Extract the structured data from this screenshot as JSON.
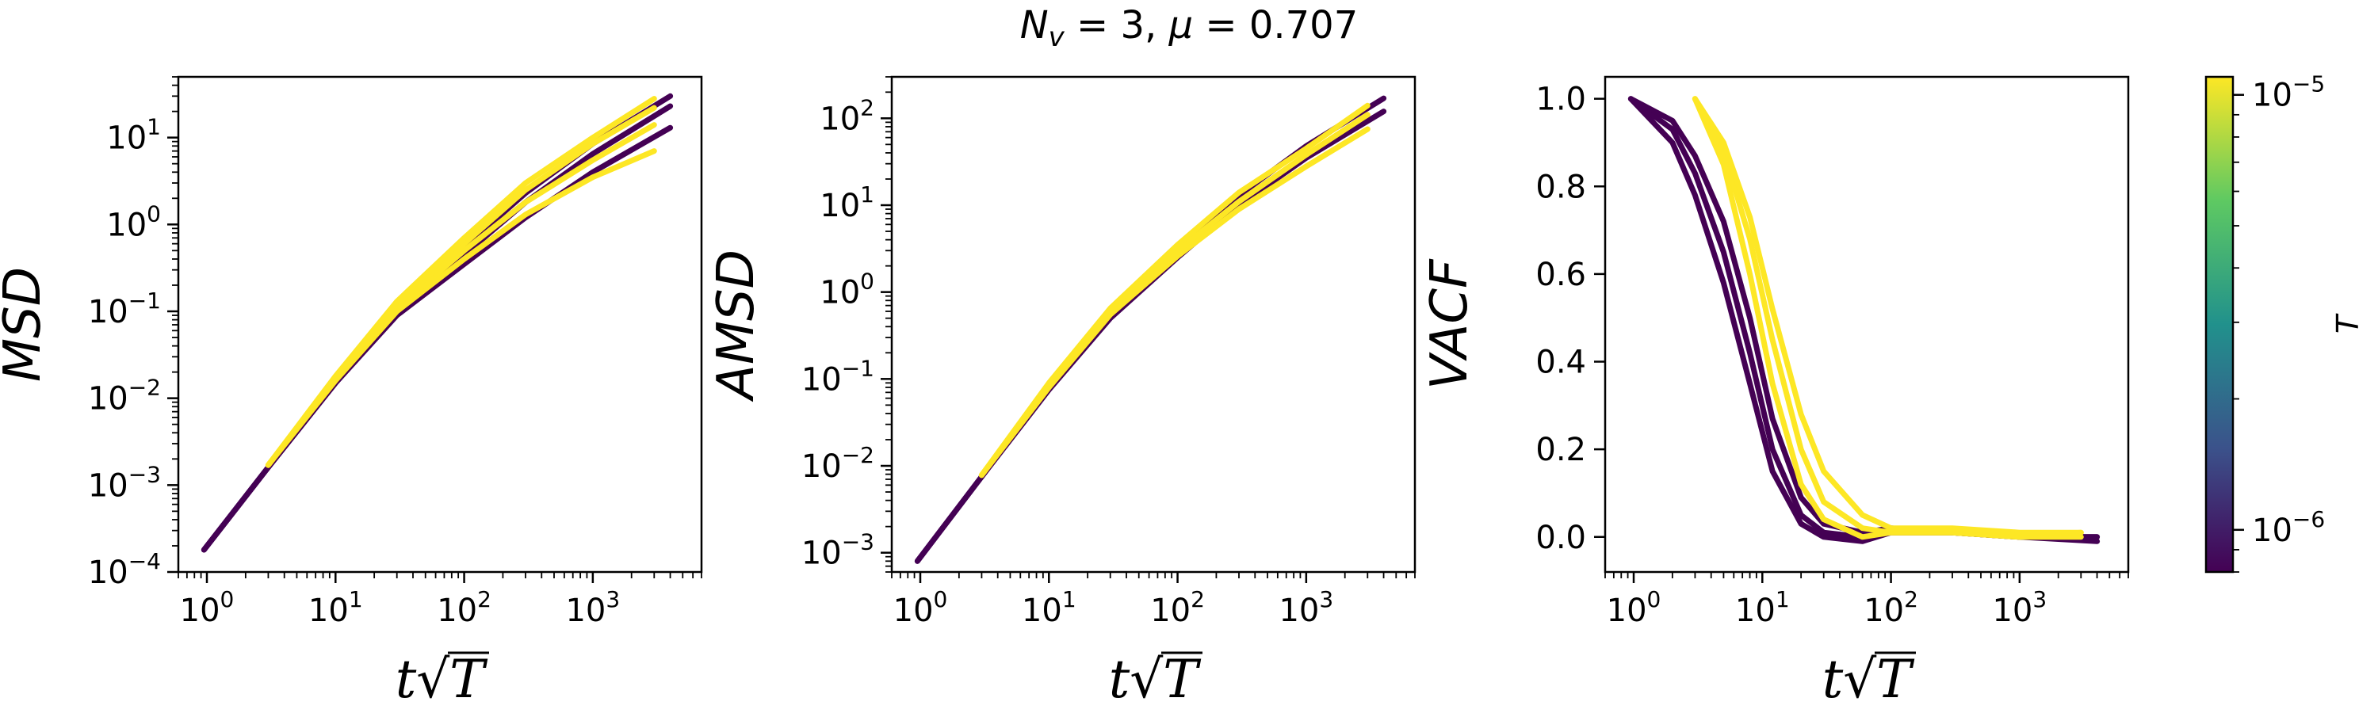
{
  "figure": {
    "suptitle": "N_v = 3, μ = 0.707",
    "colorbar": {
      "label": "T",
      "scale": "log",
      "range": [
        8e-07,
        1.1e-05
      ],
      "ticks": [
        {
          "value": 1e-05,
          "base": "10",
          "exp": "−5"
        },
        {
          "value": 1e-06,
          "base": "10",
          "exp": "−6"
        }
      ],
      "colormap": "viridis",
      "colors": [
        "#440154",
        "#3b528b",
        "#21918c",
        "#5ec962",
        "#fde725"
      ]
    }
  },
  "chart_data": [
    {
      "type": "line",
      "ylabel": "MSD",
      "xlabel": "t√T",
      "xscale": "log",
      "yscale": "log",
      "xlim": [
        0.6,
        7000
      ],
      "ylim": [
        0.0001,
        50
      ],
      "xticks": [
        {
          "value": 1,
          "base": "10",
          "exp": "0"
        },
        {
          "value": 10,
          "base": "10",
          "exp": "1"
        },
        {
          "value": 100,
          "base": "10",
          "exp": "2"
        },
        {
          "value": 1000,
          "base": "10",
          "exp": "3"
        }
      ],
      "yticks": [
        {
          "value": 0.0001,
          "base": "10",
          "exp": "−4"
        },
        {
          "value": 0.001,
          "base": "10",
          "exp": "−3"
        },
        {
          "value": 0.01,
          "base": "10",
          "exp": "−2"
        },
        {
          "value": 0.1,
          "base": "10",
          "exp": "−1"
        },
        {
          "value": 1,
          "base": "10",
          "exp": "0"
        },
        {
          "value": 10,
          "base": "10",
          "exp": "1"
        }
      ],
      "grid": false,
      "series": [
        {
          "color": "#440154",
          "x": [
            0.95,
            3,
            10,
            30,
            100,
            300,
            1000,
            4000
          ],
          "y": [
            0.00018,
            0.0016,
            0.015,
            0.09,
            0.35,
            1.2,
            4,
            13
          ]
        },
        {
          "color": "#440154",
          "x": [
            0.95,
            3,
            10,
            30,
            100,
            300,
            1000,
            4000
          ],
          "y": [
            0.00018,
            0.0016,
            0.015,
            0.1,
            0.45,
            1.8,
            6.5,
            23
          ]
        },
        {
          "color": "#440154",
          "x": [
            0.95,
            3,
            10,
            30,
            100,
            300,
            1000,
            4000
          ],
          "y": [
            0.00018,
            0.0016,
            0.016,
            0.11,
            0.55,
            2.3,
            8.5,
            30
          ]
        },
        {
          "color": "#fde725",
          "x": [
            3,
            10,
            30,
            100,
            300,
            1000,
            3000
          ],
          "y": [
            0.0017,
            0.016,
            0.1,
            0.4,
            1.3,
            3.5,
            7
          ]
        },
        {
          "color": "#fde725",
          "x": [
            3,
            10,
            30,
            100,
            300,
            1000,
            3000
          ],
          "y": [
            0.0017,
            0.017,
            0.11,
            0.5,
            1.8,
            5.5,
            14
          ]
        },
        {
          "color": "#fde725",
          "x": [
            3,
            10,
            30,
            100,
            300,
            1000,
            3000
          ],
          "y": [
            0.0017,
            0.017,
            0.12,
            0.6,
            2.5,
            8.5,
            22
          ]
        },
        {
          "color": "#fde725",
          "x": [
            3,
            10,
            30,
            100,
            300,
            1000,
            3000
          ],
          "y": [
            0.0017,
            0.018,
            0.13,
            0.7,
            3,
            10,
            28
          ]
        }
      ]
    },
    {
      "type": "line",
      "ylabel": "AMSD",
      "xlabel": "t√T",
      "xscale": "log",
      "yscale": "log",
      "xlim": [
        0.6,
        7000
      ],
      "ylim": [
        0.0006,
        300
      ],
      "xticks": [
        {
          "value": 1,
          "base": "10",
          "exp": "0"
        },
        {
          "value": 10,
          "base": "10",
          "exp": "1"
        },
        {
          "value": 100,
          "base": "10",
          "exp": "2"
        },
        {
          "value": 1000,
          "base": "10",
          "exp": "3"
        }
      ],
      "yticks": [
        {
          "value": 0.001,
          "base": "10",
          "exp": "−3"
        },
        {
          "value": 0.01,
          "base": "10",
          "exp": "−2"
        },
        {
          "value": 0.1,
          "base": "10",
          "exp": "−1"
        },
        {
          "value": 1,
          "base": "10",
          "exp": "0"
        },
        {
          "value": 10,
          "base": "10",
          "exp": "1"
        },
        {
          "value": 100,
          "base": "10",
          "exp": "2"
        }
      ],
      "grid": false,
      "series": [
        {
          "color": "#440154",
          "x": [
            0.95,
            3,
            10,
            30,
            100,
            300,
            1000,
            4000
          ],
          "y": [
            0.0008,
            0.0075,
            0.075,
            0.5,
            2.5,
            10,
            35,
            120
          ]
        },
        {
          "color": "#440154",
          "x": [
            0.95,
            3,
            10,
            30,
            100,
            300,
            1000,
            4000
          ],
          "y": [
            0.0008,
            0.0075,
            0.08,
            0.6,
            3.3,
            13,
            48,
            170
          ]
        },
        {
          "color": "#fde725",
          "x": [
            3,
            10,
            30,
            100,
            300,
            1000,
            3000
          ],
          "y": [
            0.0078,
            0.08,
            0.55,
            2.6,
            9,
            28,
            75
          ]
        },
        {
          "color": "#fde725",
          "x": [
            3,
            10,
            30,
            100,
            300,
            1000,
            3000
          ],
          "y": [
            0.0078,
            0.085,
            0.6,
            3,
            11,
            38,
            110
          ]
        },
        {
          "color": "#fde725",
          "x": [
            3,
            10,
            30,
            100,
            300,
            1000,
            3000
          ],
          "y": [
            0.0078,
            0.09,
            0.65,
            3.5,
            14,
            45,
            140
          ]
        }
      ]
    },
    {
      "type": "line",
      "ylabel": "VACF",
      "xlabel": "t√T",
      "xscale": "log",
      "yscale": "linear",
      "xlim": [
        0.6,
        7000
      ],
      "ylim": [
        -0.08,
        1.05
      ],
      "xticks": [
        {
          "value": 1,
          "base": "10",
          "exp": "0"
        },
        {
          "value": 10,
          "base": "10",
          "exp": "1"
        },
        {
          "value": 100,
          "base": "10",
          "exp": "2"
        },
        {
          "value": 1000,
          "base": "10",
          "exp": "3"
        }
      ],
      "yticks": [
        {
          "value": 0,
          "label": "0.0"
        },
        {
          "value": 0.2,
          "label": "0.2"
        },
        {
          "value": 0.4,
          "label": "0.4"
        },
        {
          "value": 0.6,
          "label": "0.6"
        },
        {
          "value": 0.8,
          "label": "0.8"
        },
        {
          "value": 1,
          "label": "1.0"
        }
      ],
      "grid": false,
      "series": [
        {
          "color": "#440154",
          "x": [
            0.95,
            2,
            3,
            5,
            8,
            12,
            20,
            30,
            60,
            100,
            300,
            1000,
            4000
          ],
          "y": [
            1,
            0.9,
            0.78,
            0.58,
            0.35,
            0.15,
            0.03,
            0,
            -0.01,
            0.01,
            0.01,
            0,
            0
          ]
        },
        {
          "color": "#440154",
          "x": [
            0.95,
            2,
            3,
            5,
            8,
            12,
            20,
            30,
            60,
            100,
            300,
            1000,
            4000
          ],
          "y": [
            1,
            0.93,
            0.83,
            0.65,
            0.42,
            0.2,
            0.05,
            0.01,
            0,
            0.01,
            0.01,
            0,
            -0.01
          ]
        },
        {
          "color": "#440154",
          "x": [
            0.95,
            2,
            3,
            5,
            8,
            12,
            20,
            30,
            60,
            100,
            300,
            1000,
            4000
          ],
          "y": [
            1,
            0.95,
            0.87,
            0.72,
            0.5,
            0.27,
            0.09,
            0.03,
            0.01,
            0.02,
            0.01,
            0,
            0
          ]
        },
        {
          "color": "#fde725",
          "x": [
            3,
            5,
            8,
            12,
            20,
            30,
            60,
            100,
            300,
            1000,
            3000
          ],
          "y": [
            1,
            0.85,
            0.6,
            0.35,
            0.12,
            0.04,
            0,
            0.01,
            0.01,
            0,
            0.01
          ]
        },
        {
          "color": "#fde725",
          "x": [
            3,
            5,
            8,
            12,
            20,
            30,
            60,
            100,
            300,
            1000,
            3000
          ],
          "y": [
            1,
            0.88,
            0.68,
            0.45,
            0.2,
            0.08,
            0.02,
            0.01,
            0.01,
            0,
            0
          ]
        },
        {
          "color": "#fde725",
          "x": [
            3,
            5,
            8,
            12,
            20,
            30,
            60,
            100,
            300,
            1000,
            3000
          ],
          "y": [
            1,
            0.9,
            0.73,
            0.52,
            0.28,
            0.15,
            0.05,
            0.02,
            0.02,
            0.01,
            0.01
          ]
        }
      ]
    }
  ]
}
